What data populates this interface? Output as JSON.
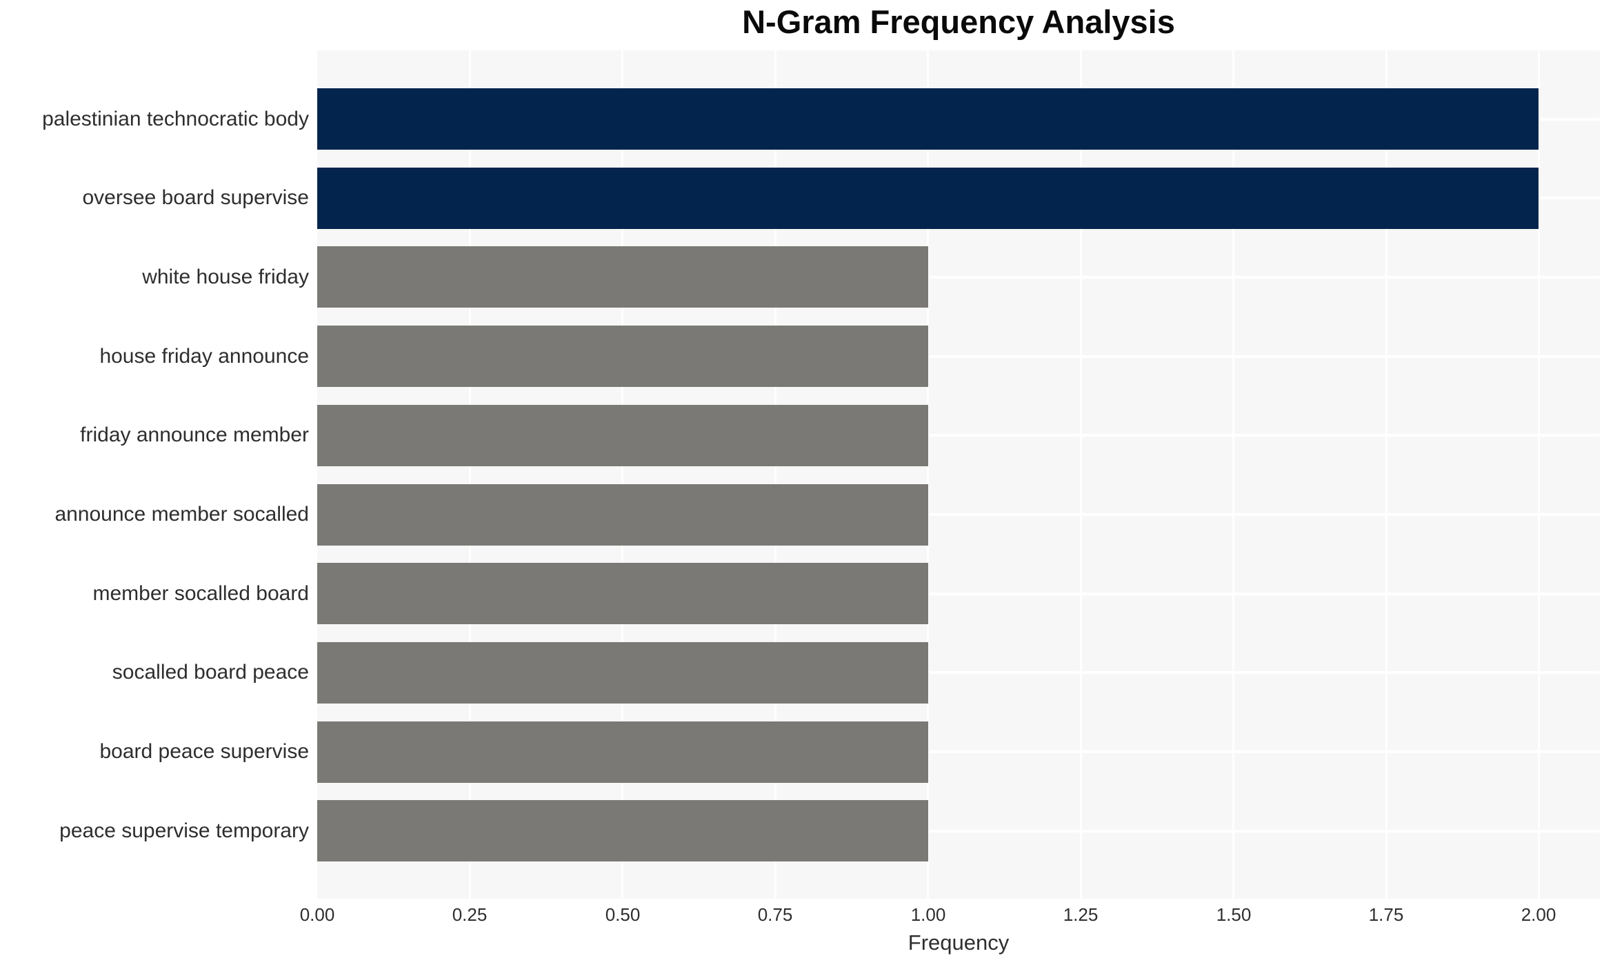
{
  "chart_data": {
    "type": "bar",
    "orientation": "horizontal",
    "title": "N-Gram Frequency Analysis",
    "xlabel": "Frequency",
    "ylabel": "",
    "categories": [
      "palestinian technocratic body",
      "oversee board supervise",
      "white house friday",
      "house friday announce",
      "friday announce member",
      "announce member socalled",
      "member socalled board",
      "socalled board peace",
      "board peace supervise",
      "peace supervise temporary"
    ],
    "values": [
      2,
      2,
      1,
      1,
      1,
      1,
      1,
      1,
      1,
      1
    ],
    "bar_colors": [
      "#03244c",
      "#03244c",
      "#7b7975",
      "#7b7975",
      "#7b7975",
      "#7b7975",
      "#7b7975",
      "#7b7975",
      "#7b7975",
      "#7b7975"
    ],
    "xlim": [
      0,
      2.1
    ],
    "xticks": [
      0.0,
      0.25,
      0.5,
      0.75,
      1.0,
      1.25,
      1.5,
      1.75,
      2.0
    ],
    "xtick_labels": [
      "0.00",
      "0.25",
      "0.50",
      "0.75",
      "1.00",
      "1.25",
      "1.50",
      "1.75",
      "2.00"
    ],
    "grid": true,
    "legend": false,
    "colors": {
      "highlight": "#03244c",
      "default": "#7b7975",
      "plot_background": "#f7f7f7",
      "gridline": "#ffffff",
      "axis_text": "#2e2e2e",
      "title_text": "#0a0a0a"
    }
  }
}
